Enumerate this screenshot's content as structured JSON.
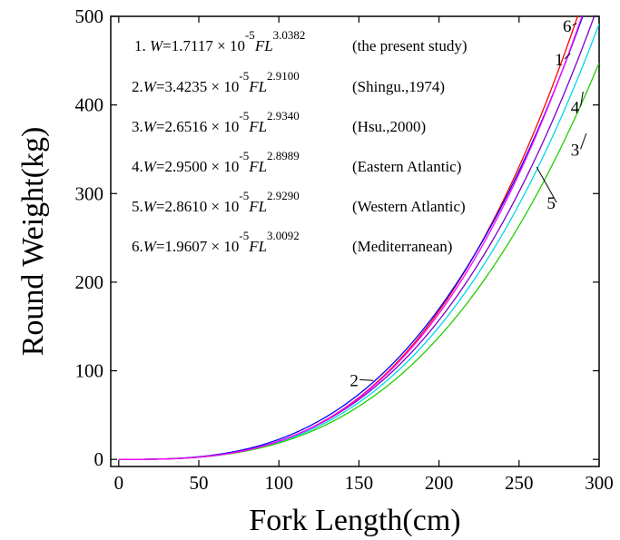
{
  "chart_data": {
    "type": "line",
    "title": "",
    "xlabel": "Fork Length(cm)",
    "ylabel": "Round Weight(kg)",
    "xlim": [
      -5,
      300
    ],
    "ylim": [
      -8,
      500
    ],
    "x_ticks": [
      0,
      50,
      100,
      150,
      200,
      250,
      300
    ],
    "y_ticks": [
      0,
      100,
      200,
      300,
      400,
      500
    ],
    "x_tick_labels": [
      "0",
      "50",
      "100",
      "150",
      "200",
      "250",
      "300"
    ],
    "y_tick_labels": [
      "0",
      "100",
      "200",
      "300",
      "400",
      "500"
    ],
    "x_range": [
      0,
      300
    ],
    "legend_placement": "top-left",
    "grid": false,
    "series": [
      {
        "name": "1",
        "a": 1.7117e-05,
        "b": 3.0382,
        "color": "#ff0000",
        "equation": {
          "prefix": "1. ",
          "coef": "W=1.7117 × 10",
          "exp1": "-5",
          "var": "FL",
          "exp2": "3.0382",
          "source": "(the present study)"
        }
      },
      {
        "name": "2",
        "a": 3.4235e-05,
        "b": 2.91,
        "color": "#0000ff",
        "equation": {
          "prefix": "2.",
          "coef": "W=3.4235 × 10",
          "exp1": "-5",
          "var": "FL",
          "exp2": "2.9100",
          "source": "(Shingu.,1974)"
        }
      },
      {
        "name": "3",
        "a": 2.6516e-05,
        "b": 2.934,
        "color": "#00d8e8",
        "equation": {
          "prefix": "3.",
          "coef": "W=2.6516 × 10",
          "exp1": "-5",
          "var": "FL",
          "exp2": "2.9340",
          "source": "(Hsu.,2000)"
        }
      },
      {
        "name": "4",
        "a": 2.95e-05,
        "b": 2.8989,
        "color": "#22cc00",
        "equation": {
          "prefix": "4.",
          "coef": "W=2.9500 × 10",
          "exp1": "-5",
          "var": "FL",
          "exp2": "2.8989",
          "source": "(Eastern Atlantic)"
        }
      },
      {
        "name": "5",
        "a": 2.861e-05,
        "b": 2.929,
        "color": "#7a00cc",
        "equation": {
          "prefix": "5.",
          "coef": "W=2.8610 × 10",
          "exp1": "-5",
          "var": "FL",
          "exp2": "2.9290",
          "source": "(Western Atlantic)"
        }
      },
      {
        "name": "6",
        "a": 1.9607e-05,
        "b": 3.0092,
        "color": "#ff00ff",
        "equation": {
          "prefix": "6.",
          "coef": "W=1.9607 × 10",
          "exp1": "-5",
          "var": "FL",
          "exp2": "3.0092",
          "source": "(Mediterranean)"
        }
      }
    ],
    "curve_labels": [
      {
        "text": "6",
        "x": 280,
        "y": 490,
        "to_x": 286,
        "to_y": 492
      },
      {
        "text": "1",
        "x": 275,
        "y": 452,
        "to_x": 282,
        "to_y": 458
      },
      {
        "text": "4",
        "x": 285,
        "y": 398,
        "to_x": 290,
        "to_y": 415
      },
      {
        "text": "3",
        "x": 285,
        "y": 350,
        "to_x": 292,
        "to_y": 368
      },
      {
        "text": "5",
        "x": 270,
        "y": 290,
        "to_x": 261,
        "to_y": 330
      },
      {
        "text": "2",
        "x": 147,
        "y": 90,
        "to_x": 159,
        "to_y": 89
      }
    ]
  }
}
